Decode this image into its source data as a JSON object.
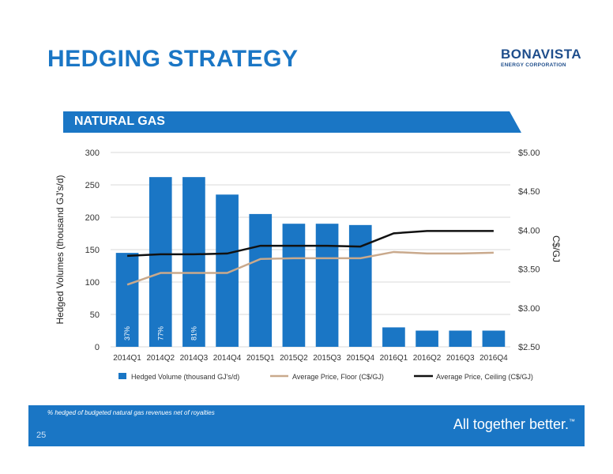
{
  "slide": {
    "title": "HEDGING STRATEGY",
    "logo_name": "BONAVISTA",
    "logo_sub": "ENERGY CORPORATION",
    "section": "NATURAL GAS",
    "footnote": "% hedged of budgeted natural gas revenues net of royalties",
    "tagline": "All together better.",
    "trademark": "™",
    "page_number": "25"
  },
  "colors": {
    "accent": "#1a76c5",
    "bar": "#1a76c5",
    "floor_line": "#c9a98c",
    "ceiling_line": "#111111",
    "grid": "#d9d9d9"
  },
  "chart_data": {
    "type": "bar",
    "categories": [
      "2014Q1",
      "2014Q2",
      "2014Q3",
      "2014Q4",
      "2015Q1",
      "2015Q2",
      "2015Q3",
      "2015Q4",
      "2016Q1",
      "2016Q2",
      "2016Q3",
      "2016Q4"
    ],
    "series": [
      {
        "name": "Hedged Volume (thousand GJ's/d)",
        "type": "bar",
        "axis": "left",
        "values": [
          145,
          262,
          262,
          235,
          205,
          190,
          190,
          188,
          30,
          25,
          25,
          25
        ]
      },
      {
        "name": "Average Price, Floor (C$/GJ)",
        "type": "line",
        "axis": "right",
        "values": [
          3.3,
          3.45,
          3.45,
          3.45,
          3.63,
          3.64,
          3.64,
          3.64,
          3.72,
          3.7,
          3.7,
          3.71
        ]
      },
      {
        "name": "Average Price, Ceiling (C$/GJ)",
        "type": "line",
        "axis": "right",
        "values": [
          3.67,
          3.69,
          3.69,
          3.7,
          3.8,
          3.8,
          3.8,
          3.79,
          3.96,
          3.99,
          3.99,
          3.99
        ]
      }
    ],
    "bar_labels": [
      "37%",
      "77%",
      "81%",
      "",
      "",
      "",
      "",
      "",
      "",
      "",
      "",
      ""
    ],
    "ylabel": "Hedged Volumes (thousand GJ's/d)",
    "y2label": "C$/GJ",
    "ylim": [
      0,
      300
    ],
    "y2lim": [
      2.5,
      5.0
    ],
    "yticks": [
      "0",
      "50",
      "100",
      "150",
      "200",
      "250",
      "300"
    ],
    "y2ticks": [
      "$2.50",
      "$3.00",
      "$3.50",
      "$4.00",
      "$4.50",
      "$5.00"
    ],
    "grid": true,
    "legend_position": "bottom"
  }
}
